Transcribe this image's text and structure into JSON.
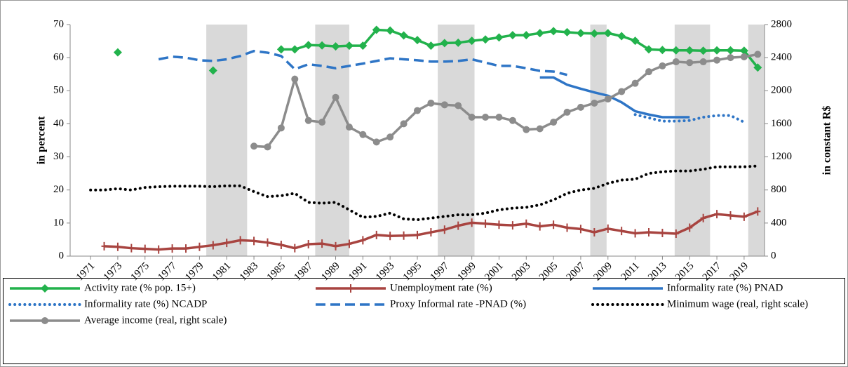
{
  "chart_data": {
    "type": "line",
    "y_label": "in percent",
    "y2_label": "in constant R$",
    "x": [
      1971,
      1972,
      1973,
      1974,
      1975,
      1976,
      1977,
      1978,
      1979,
      1980,
      1981,
      1982,
      1983,
      1984,
      1985,
      1986,
      1987,
      1988,
      1989,
      1990,
      1991,
      1992,
      1993,
      1994,
      1995,
      1996,
      1997,
      1998,
      1999,
      2000,
      2001,
      2002,
      2003,
      2004,
      2005,
      2006,
      2007,
      2008,
      2009,
      2010,
      2011,
      2012,
      2013,
      2014,
      2015,
      2016,
      2017,
      2018,
      2019,
      2020
    ],
    "xlim": [
      1969.5,
      2020.5
    ],
    "xticks": [
      1971,
      1973,
      1975,
      1977,
      1979,
      1981,
      1983,
      1985,
      1987,
      1989,
      1991,
      1993,
      1995,
      1997,
      1999,
      2001,
      2003,
      2005,
      2007,
      2009,
      2011,
      2013,
      2015,
      2017,
      2019
    ],
    "ylim": [
      0,
      70
    ],
    "yticks": [
      0,
      10,
      20,
      30,
      40,
      50,
      60,
      70
    ],
    "y2lim": [
      0,
      2800
    ],
    "y2ticks": [
      0,
      400,
      800,
      1200,
      1600,
      2000,
      2400,
      2800
    ],
    "shaded_periods": [
      [
        1979.5,
        1982.5
      ],
      [
        1987.5,
        1990
      ],
      [
        1996.5,
        1999.2
      ],
      [
        2007.7,
        2008.9
      ],
      [
        2013.9,
        2016.5
      ],
      [
        2019.3,
        2020.5
      ]
    ],
    "shade_color": "#d9d9d9",
    "series": [
      {
        "name": "Activity rate (% pop. 15+)",
        "color": "#22b24c",
        "style": "solid",
        "marker": "diamond",
        "values": [
          null,
          null,
          61.6,
          null,
          null,
          null,
          null,
          null,
          null,
          56.1,
          null,
          null,
          null,
          null,
          62.5,
          62.5,
          63.8,
          63.7,
          63.4,
          63.6,
          63.6,
          68.4,
          68.2,
          66.7,
          65.3,
          63.6,
          64.4,
          64.5,
          65.1,
          65.5,
          66.1,
          66.8,
          66.8,
          67.4,
          68.0,
          67.7,
          67.4,
          67.3,
          67.4,
          66.5,
          65.1,
          62.5,
          62.3,
          62.2,
          62.2,
          62.1,
          62.2,
          62.2,
          62.1,
          57.0
        ]
      },
      {
        "name": "Unemployment rate (%)",
        "color": "#a84440",
        "style": "solid",
        "marker": "plus",
        "values": [
          null,
          3.0,
          2.8,
          2.4,
          2.2,
          2.0,
          2.3,
          2.3,
          2.8,
          3.3,
          4.0,
          4.8,
          4.6,
          4.1,
          3.4,
          2.4,
          3.6,
          3.8,
          3.0,
          3.7,
          4.8,
          6.4,
          6.1,
          6.2,
          6.4,
          7.2,
          8.0,
          9.2,
          10.1,
          9.8,
          9.5,
          9.3,
          9.8,
          9.0,
          9.5,
          8.6,
          8.2,
          7.2,
          8.3,
          7.6,
          6.9,
          7.2,
          7.0,
          6.8,
          8.6,
          11.5,
          12.7,
          12.3,
          11.9,
          13.5
        ]
      },
      {
        "name": "Informality rate (%) PNAD",
        "color": "#2e75c6",
        "style": "solid",
        "marker": "none",
        "values": [
          null,
          null,
          null,
          null,
          null,
          null,
          null,
          null,
          null,
          null,
          null,
          null,
          null,
          null,
          null,
          null,
          null,
          null,
          null,
          null,
          null,
          null,
          null,
          null,
          null,
          null,
          null,
          null,
          null,
          null,
          null,
          null,
          null,
          54.0,
          54.0,
          51.8,
          50.6,
          49.5,
          48.5,
          46.5,
          43.8,
          42.8,
          42.0,
          42.0,
          42.0,
          null,
          null,
          null,
          null,
          null
        ]
      },
      {
        "name": "Informality rate (%) NCADP",
        "color": "#2e75c6",
        "style": "dotted",
        "marker": "none",
        "values": [
          null,
          null,
          null,
          null,
          null,
          null,
          null,
          null,
          null,
          null,
          null,
          null,
          null,
          null,
          null,
          null,
          null,
          null,
          null,
          null,
          null,
          null,
          null,
          null,
          null,
          null,
          null,
          null,
          null,
          null,
          null,
          null,
          null,
          null,
          null,
          null,
          null,
          null,
          null,
          null,
          42.8,
          41.8,
          40.8,
          40.8,
          41.0,
          42.0,
          42.5,
          42.5,
          40.5,
          null
        ]
      },
      {
        "name": "Proxy Informal rate -PNAD (%)",
        "color": "#2e75c6",
        "style": "dashed",
        "marker": "none",
        "values": [
          null,
          null,
          null,
          null,
          null,
          59.5,
          60.3,
          60.0,
          59.2,
          59.0,
          59.5,
          60.5,
          62.0,
          61.5,
          60.5,
          56.5,
          58.0,
          57.5,
          56.8,
          57.5,
          58.2,
          59.0,
          59.8,
          59.5,
          59.2,
          58.8,
          58.8,
          59.0,
          59.5,
          58.5,
          57.5,
          57.5,
          56.8,
          56.0,
          55.8,
          54.8,
          null,
          null,
          null,
          null,
          null,
          null,
          null,
          null,
          null,
          null,
          null,
          null,
          null,
          null
        ]
      },
      {
        "name": "Minimum wage (real, right scale)",
        "color": "#000000",
        "style": "dotted",
        "marker": "none",
        "axis": "y2",
        "values": [
          800,
          800,
          815,
          800,
          830,
          840,
          845,
          845,
          845,
          840,
          850,
          850,
          780,
          720,
          730,
          760,
          650,
          640,
          650,
          560,
          470,
          480,
          520,
          450,
          440,
          460,
          480,
          500,
          500,
          520,
          560,
          580,
          590,
          620,
          680,
          760,
          800,
          820,
          880,
          920,
          930,
          1000,
          1020,
          1030,
          1030,
          1050,
          1080,
          1080,
          1080,
          1090
        ]
      },
      {
        "name": "Average income (real, right scale)",
        "color": "#8c8c8c",
        "style": "solid",
        "marker": "circle",
        "axis": "y2",
        "values": [
          null,
          null,
          null,
          null,
          null,
          null,
          null,
          null,
          null,
          null,
          null,
          null,
          1330,
          1320,
          1550,
          2140,
          1640,
          1620,
          1920,
          1560,
          1470,
          1380,
          1440,
          1600,
          1760,
          1850,
          1830,
          1820,
          1680,
          1680,
          1680,
          1640,
          1530,
          1540,
          1620,
          1740,
          1800,
          1850,
          1900,
          1990,
          2090,
          2230,
          2300,
          2350,
          2340,
          2350,
          2370,
          2400,
          2410,
          2440
        ]
      }
    ]
  }
}
